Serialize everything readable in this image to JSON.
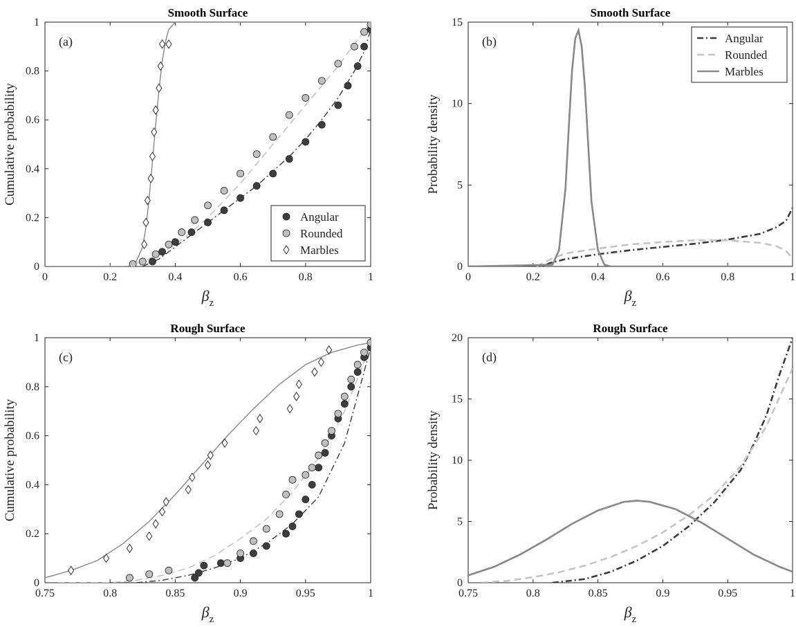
{
  "chart_data": [
    {
      "id": "a",
      "type": "scatter",
      "title": "Smooth Surface",
      "panel_label": "(a)",
      "xlabel_symbol": "β",
      "xlabel_sub": "z",
      "ylabel": "Cumulative probability",
      "xlim": [
        0,
        1
      ],
      "ylim": [
        0,
        1
      ],
      "xticks": [
        "0",
        "0.2",
        "0.4",
        "0.6",
        "0.8",
        "1"
      ],
      "yticks": [
        "0",
        "0.2",
        "0.4",
        "0.6",
        "0.8",
        "1"
      ],
      "legend_position": "bottom-right",
      "legend": [
        "Angular",
        "Rounded",
        "Marbles"
      ],
      "colors": {
        "angular": "#3a3a3a",
        "rounded": "#bdbdbd",
        "marbles": "#888888"
      },
      "series": [
        {
          "name": "Angular",
          "kind": "points",
          "marker": "dark-circle",
          "x": [
            0.33,
            0.36,
            0.4,
            0.45,
            0.5,
            0.55,
            0.6,
            0.65,
            0.7,
            0.75,
            0.8,
            0.85,
            0.9,
            0.93,
            0.96,
            0.98,
            1.0
          ],
          "y": [
            0.02,
            0.06,
            0.1,
            0.14,
            0.18,
            0.23,
            0.28,
            0.33,
            0.38,
            0.44,
            0.51,
            0.58,
            0.66,
            0.74,
            0.82,
            0.9,
            0.97
          ]
        },
        {
          "name": "Rounded",
          "kind": "points",
          "marker": "light-circle",
          "x": [
            0.27,
            0.3,
            0.34,
            0.38,
            0.42,
            0.46,
            0.5,
            0.55,
            0.6,
            0.65,
            0.7,
            0.75,
            0.8,
            0.85,
            0.9,
            0.95,
            0.98,
            1.0
          ],
          "y": [
            0.01,
            0.02,
            0.05,
            0.09,
            0.14,
            0.19,
            0.25,
            0.31,
            0.38,
            0.46,
            0.53,
            0.62,
            0.69,
            0.76,
            0.83,
            0.9,
            0.96,
            0.99
          ]
        },
        {
          "name": "Marbles",
          "kind": "points",
          "marker": "diamond",
          "x": [
            0.305,
            0.31,
            0.315,
            0.325,
            0.33,
            0.335,
            0.34,
            0.35,
            0.355,
            0.36,
            0.38
          ],
          "y": [
            0.09,
            0.18,
            0.27,
            0.36,
            0.45,
            0.55,
            0.64,
            0.73,
            0.82,
            0.91,
            0.91
          ]
        },
        {
          "name": "Angular fit",
          "kind": "line",
          "style": "dashdot",
          "x": [
            0.3,
            0.35,
            0.4,
            0.45,
            0.5,
            0.55,
            0.6,
            0.65,
            0.7,
            0.75,
            0.8,
            0.85,
            0.9,
            0.95,
            0.98,
            1.0
          ],
          "y": [
            0.0,
            0.03,
            0.08,
            0.13,
            0.18,
            0.23,
            0.28,
            0.33,
            0.39,
            0.45,
            0.52,
            0.6,
            0.69,
            0.8,
            0.88,
            0.97
          ]
        },
        {
          "name": "Rounded fit",
          "kind": "line",
          "style": "dashed",
          "x": [
            0.25,
            0.3,
            0.35,
            0.4,
            0.45,
            0.5,
            0.55,
            0.6,
            0.65,
            0.7,
            0.75,
            0.8,
            0.85,
            0.9,
            0.95,
            1.0
          ],
          "y": [
            0.0,
            0.02,
            0.05,
            0.09,
            0.14,
            0.2,
            0.27,
            0.34,
            0.42,
            0.5,
            0.58,
            0.66,
            0.74,
            0.82,
            0.91,
            1.0
          ]
        },
        {
          "name": "Marbles fit",
          "kind": "line",
          "style": "solid",
          "x": [
            0.0,
            0.26,
            0.28,
            0.3,
            0.31,
            0.32,
            0.33,
            0.34,
            0.35,
            0.36,
            0.37,
            0.38,
            0.4,
            0.42,
            1.0
          ],
          "y": [
            0.0,
            0.0,
            0.02,
            0.08,
            0.16,
            0.28,
            0.43,
            0.58,
            0.72,
            0.84,
            0.92,
            0.97,
            1.0,
            1.0,
            1.0
          ]
        }
      ]
    },
    {
      "id": "b",
      "type": "line",
      "title": "Smooth Surface",
      "panel_label": "(b)",
      "xlabel_symbol": "β",
      "xlabel_sub": "z",
      "ylabel": "Probability density",
      "xlim": [
        0,
        1
      ],
      "ylim": [
        0,
        15
      ],
      "xticks": [
        "0",
        "0.2",
        "0.4",
        "0.6",
        "0.8",
        "1"
      ],
      "yticks": [
        "0",
        "5",
        "10",
        "15"
      ],
      "legend_position": "top-right",
      "legend": [
        "Angular",
        "Rounded",
        "Marbles"
      ],
      "colors": {
        "angular": "#3a3a3a",
        "rounded": "#c4c4c4",
        "marbles": "#888888"
      },
      "series": [
        {
          "name": "Angular",
          "kind": "line",
          "style": "dashdot",
          "x": [
            0.0,
            0.23,
            0.25,
            0.3,
            0.4,
            0.5,
            0.6,
            0.7,
            0.8,
            0.9,
            0.95,
            0.98,
            1.0
          ],
          "y": [
            0.0,
            0.0,
            0.2,
            0.45,
            0.75,
            1.0,
            1.2,
            1.4,
            1.65,
            2.0,
            2.4,
            2.8,
            3.6
          ]
        },
        {
          "name": "Rounded",
          "kind": "line",
          "style": "dashed",
          "x": [
            0.21,
            0.23,
            0.26,
            0.3,
            0.4,
            0.5,
            0.6,
            0.7,
            0.8,
            0.9,
            0.95,
            0.98,
            1.0
          ],
          "y": [
            0.0,
            0.2,
            0.5,
            0.8,
            1.1,
            1.35,
            1.5,
            1.6,
            1.6,
            1.45,
            1.25,
            0.95,
            0.5
          ]
        },
        {
          "name": "Marbles",
          "kind": "line",
          "style": "solid",
          "x": [
            0.0,
            0.26,
            0.28,
            0.3,
            0.31,
            0.32,
            0.33,
            0.34,
            0.35,
            0.36,
            0.37,
            0.38,
            0.4,
            0.42,
            0.44,
            1.0
          ],
          "y": [
            0.0,
            0.1,
            1.0,
            4.8,
            8.5,
            12.0,
            14.0,
            14.5,
            13.5,
            11.0,
            7.5,
            4.0,
            1.0,
            0.1,
            0.0,
            0.0
          ]
        }
      ]
    },
    {
      "id": "c",
      "type": "scatter",
      "title": "Rough Surface",
      "panel_label": "(c)",
      "xlabel_symbol": "β",
      "xlabel_sub": "z",
      "ylabel": "Cumulative probability",
      "xlim": [
        0.75,
        1
      ],
      "ylim": [
        0,
        1
      ],
      "xticks": [
        "0.75",
        "0.8",
        "0.85",
        "0.9",
        "0.95",
        "1"
      ],
      "yticks": [
        "0",
        "0.2",
        "0.4",
        "0.6",
        "0.8",
        "1"
      ],
      "colors": {
        "angular": "#3a3a3a",
        "rounded": "#bdbdbd",
        "marbles": "#888888"
      },
      "series": [
        {
          "name": "Angular",
          "kind": "points",
          "marker": "dark-circle",
          "x": [
            0.865,
            0.868,
            0.872,
            0.885,
            0.9,
            0.91,
            0.92,
            0.935,
            0.94,
            0.945,
            0.95,
            0.955,
            0.96,
            0.965,
            0.97,
            0.975,
            0.98,
            0.985,
            0.99,
            0.995,
            1.0
          ],
          "y": [
            0.02,
            0.04,
            0.07,
            0.08,
            0.1,
            0.12,
            0.15,
            0.2,
            0.23,
            0.28,
            0.34,
            0.4,
            0.47,
            0.53,
            0.6,
            0.67,
            0.73,
            0.8,
            0.86,
            0.92,
            0.96
          ]
        },
        {
          "name": "Rounded",
          "kind": "points",
          "marker": "light-circle",
          "x": [
            0.815,
            0.83,
            0.845,
            0.89,
            0.9,
            0.91,
            0.92,
            0.93,
            0.935,
            0.94,
            0.95,
            0.955,
            0.96,
            0.965,
            0.97,
            0.975,
            0.98,
            0.985,
            0.99,
            0.995,
            1.0
          ],
          "y": [
            0.02,
            0.035,
            0.05,
            0.08,
            0.12,
            0.17,
            0.22,
            0.28,
            0.36,
            0.42,
            0.44,
            0.47,
            0.52,
            0.57,
            0.62,
            0.69,
            0.76,
            0.83,
            0.89,
            0.94,
            0.98
          ]
        },
        {
          "name": "Marbles",
          "kind": "points",
          "marker": "diamond",
          "x": [
            0.77,
            0.797,
            0.815,
            0.83,
            0.835,
            0.84,
            0.843,
            0.86,
            0.863,
            0.875,
            0.877,
            0.888,
            0.912,
            0.915,
            0.938,
            0.943,
            0.945,
            0.957,
            0.962,
            0.968
          ],
          "y": [
            0.05,
            0.1,
            0.14,
            0.19,
            0.24,
            0.29,
            0.33,
            0.38,
            0.43,
            0.48,
            0.52,
            0.57,
            0.62,
            0.67,
            0.71,
            0.76,
            0.81,
            0.86,
            0.9,
            0.95
          ]
        },
        {
          "name": "Angular fit",
          "kind": "line",
          "style": "dashdot",
          "x": [
            0.8,
            0.82,
            0.84,
            0.86,
            0.88,
            0.9,
            0.92,
            0.94,
            0.96,
            0.98,
            1.0
          ],
          "y": [
            0.0,
            0.0,
            0.01,
            0.03,
            0.06,
            0.1,
            0.16,
            0.24,
            0.35,
            0.57,
            0.96
          ]
        },
        {
          "name": "Rounded fit",
          "kind": "line",
          "style": "dashed",
          "x": [
            0.76,
            0.8,
            0.82,
            0.84,
            0.86,
            0.88,
            0.9,
            0.92,
            0.94,
            0.96,
            0.98,
            1.0
          ],
          "y": [
            0.0,
            0.0,
            0.01,
            0.03,
            0.06,
            0.11,
            0.18,
            0.26,
            0.37,
            0.51,
            0.7,
            0.97
          ]
        },
        {
          "name": "Marbles fit",
          "kind": "line",
          "style": "solid",
          "x": [
            0.75,
            0.77,
            0.79,
            0.81,
            0.83,
            0.85,
            0.87,
            0.89,
            0.91,
            0.93,
            0.95,
            0.97,
            0.99,
            1.0
          ],
          "y": [
            0.02,
            0.05,
            0.09,
            0.16,
            0.25,
            0.36,
            0.48,
            0.6,
            0.71,
            0.81,
            0.89,
            0.94,
            0.97,
            0.98
          ]
        }
      ]
    },
    {
      "id": "d",
      "type": "line",
      "title": "Rough Surface",
      "panel_label": "(d)",
      "xlabel_symbol": "β",
      "xlabel_sub": "z",
      "ylabel": "Probability density",
      "xlim": [
        0.75,
        1
      ],
      "ylim": [
        0,
        20
      ],
      "xticks": [
        "0.75",
        "0.8",
        "0.85",
        "0.9",
        "0.95",
        "1"
      ],
      "yticks": [
        "0",
        "5",
        "10",
        "15",
        "20"
      ],
      "colors": {
        "angular": "#3a3a3a",
        "rounded": "#c4c4c4",
        "marbles": "#888888"
      },
      "series": [
        {
          "name": "Angular",
          "kind": "line",
          "style": "dashdot",
          "x": [
            0.815,
            0.84,
            0.86,
            0.88,
            0.9,
            0.92,
            0.94,
            0.96,
            0.97,
            0.98,
            0.99,
            1.0
          ],
          "y": [
            0.0,
            0.3,
            0.9,
            1.8,
            3.0,
            4.6,
            6.6,
            9.2,
            11.3,
            13.7,
            17.0,
            20.5
          ]
        },
        {
          "name": "Rounded",
          "kind": "line",
          "style": "dashed",
          "x": [
            0.76,
            0.78,
            0.8,
            0.82,
            0.84,
            0.86,
            0.88,
            0.9,
            0.92,
            0.94,
            0.96,
            0.98,
            1.0
          ],
          "y": [
            0.0,
            0.15,
            0.45,
            0.85,
            1.4,
            2.1,
            3.0,
            4.1,
            5.5,
            7.2,
            9.5,
            12.8,
            17.5
          ]
        },
        {
          "name": "Marbles",
          "kind": "line",
          "style": "solid",
          "x": [
            0.75,
            0.77,
            0.79,
            0.81,
            0.83,
            0.85,
            0.87,
            0.88,
            0.89,
            0.91,
            0.93,
            0.95,
            0.97,
            0.99,
            1.0
          ],
          "y": [
            0.6,
            1.3,
            2.3,
            3.5,
            4.8,
            5.9,
            6.6,
            6.7,
            6.6,
            6.0,
            4.9,
            3.6,
            2.3,
            1.3,
            0.9
          ]
        }
      ]
    }
  ]
}
